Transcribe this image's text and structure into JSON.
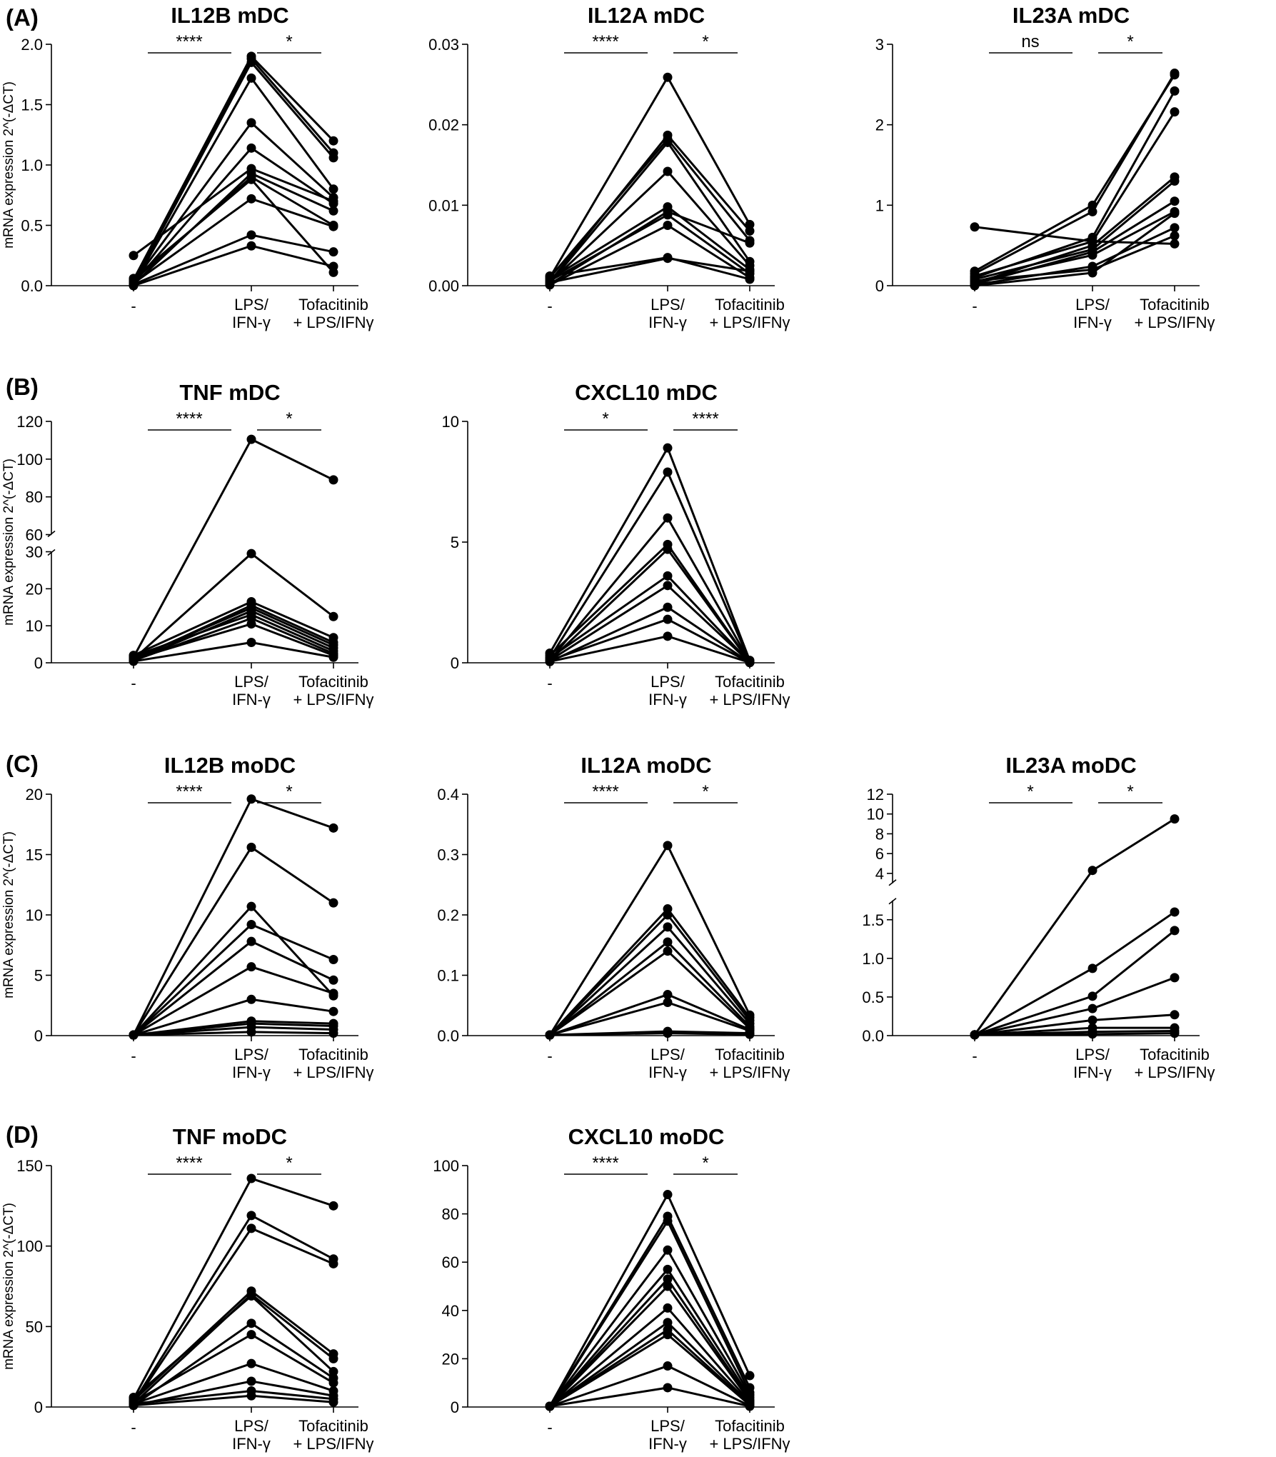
{
  "panel_labels": [
    "(A)",
    "(B)",
    "(C)",
    "(D)"
  ],
  "y_axis_label": "mRNA expression 2^(-ΔCT)",
  "x_categories": [
    "-",
    "LPS/ IFN-γ",
    "Tofacitinib + LPS/IFNγ"
  ],
  "chart_data": [
    {
      "type": "line",
      "title": "IL12B mDC",
      "row": 0,
      "col": 0,
      "categories": [
        "-",
        "LPS/IFN-γ",
        "Tofacitinib + LPS/IFNγ"
      ],
      "ylim": [
        0,
        2
      ],
      "yticks": [
        0.0,
        0.5,
        1.0,
        1.5,
        2.0
      ],
      "ytick_labels": [
        "0.0",
        "0.5",
        "1.0",
        "1.5",
        "2.0"
      ],
      "significance": [
        "****",
        "*"
      ],
      "series": [
        {
          "values": [
            0.25,
            0.97,
            0.7
          ]
        },
        {
          "values": [
            0.05,
            1.9,
            1.2
          ]
        },
        {
          "values": [
            0.03,
            1.88,
            1.1
          ]
        },
        {
          "values": [
            0.02,
            1.85,
            1.06
          ]
        },
        {
          "values": [
            0.01,
            1.72,
            0.8
          ]
        },
        {
          "values": [
            0.03,
            1.35,
            0.73
          ]
        },
        {
          "values": [
            0.02,
            1.14,
            0.68
          ]
        },
        {
          "values": [
            0.01,
            0.93,
            0.62
          ]
        },
        {
          "values": [
            0.04,
            0.9,
            0.5
          ]
        },
        {
          "values": [
            0.02,
            0.72,
            0.49
          ]
        },
        {
          "values": [
            0.01,
            0.42,
            0.28
          ]
        },
        {
          "values": [
            0.0,
            0.33,
            0.16
          ]
        },
        {
          "values": [
            0.06,
            0.88,
            0.11
          ]
        }
      ]
    },
    {
      "type": "line",
      "title": "IL12A mDC",
      "row": 0,
      "col": 1,
      "categories": [
        "-",
        "LPS/IFN-γ",
        "Tofacitinib + LPS/IFNγ"
      ],
      "ylim": [
        0,
        0.03
      ],
      "yticks": [
        0,
        0.01,
        0.02,
        0.03
      ],
      "ytick_labels": [
        "0.00",
        "0.01",
        "0.02",
        "0.03"
      ],
      "significance": [
        "****",
        "*"
      ],
      "series": [
        {
          "values": [
            0.001,
            0.0259,
            0.0076
          ]
        },
        {
          "values": [
            0.0005,
            0.0187,
            0.0068
          ]
        },
        {
          "values": [
            0.001,
            0.0182,
            0.0056
          ]
        },
        {
          "values": [
            0.0003,
            0.0178,
            0.003
          ]
        },
        {
          "values": [
            0.0004,
            0.0142,
            0.0025
          ]
        },
        {
          "values": [
            0.0008,
            0.0098,
            0.002
          ]
        },
        {
          "values": [
            0.0002,
            0.0092,
            0.0053
          ]
        },
        {
          "values": [
            0.0006,
            0.0088,
            0.0015
          ]
        },
        {
          "values": [
            0.0001,
            0.0075,
            0.001
          ]
        },
        {
          "values": [
            0.0012,
            0.0035,
            0.0008
          ]
        },
        {
          "values": [
            0.0004,
            0.0034,
            0.0018
          ]
        }
      ]
    },
    {
      "type": "line",
      "title": "IL23A mDC",
      "row": 0,
      "col": 2,
      "categories": [
        "-",
        "LPS/IFN-γ",
        "Tofacitinib + LPS/IFNγ"
      ],
      "ylim": [
        0,
        3
      ],
      "yticks": [
        0,
        1,
        2,
        3
      ],
      "ytick_labels": [
        "0",
        "1",
        "2",
        "3"
      ],
      "significance": [
        "ns",
        "*"
      ],
      "series": [
        {
          "values": [
            0.73,
            0.55,
            0.52
          ]
        },
        {
          "values": [
            0.18,
            1.0,
            2.62
          ]
        },
        {
          "values": [
            0.15,
            0.92,
            2.64
          ]
        },
        {
          "values": [
            0.1,
            0.6,
            2.42
          ]
        },
        {
          "values": [
            0.12,
            0.55,
            2.16
          ]
        },
        {
          "values": [
            0.03,
            0.5,
            1.35
          ]
        },
        {
          "values": [
            0.08,
            0.45,
            1.3
          ]
        },
        {
          "values": [
            0.02,
            0.42,
            1.05
          ]
        },
        {
          "values": [
            0.05,
            0.38,
            0.92
          ]
        },
        {
          "values": [
            0.01,
            0.24,
            0.72
          ]
        },
        {
          "values": [
            0.06,
            0.2,
            0.62
          ]
        },
        {
          "values": [
            0.0,
            0.16,
            0.9
          ]
        }
      ]
    },
    {
      "type": "line",
      "title": "TNF mDC",
      "row": 1,
      "col": 0,
      "categories": [
        "-",
        "LPS/IFN-γ",
        "Tofacitinib + LPS/IFNγ"
      ],
      "axis_break": {
        "lower_max": 30,
        "upper_min": 60,
        "upper_max": 120,
        "split": 0.46
      },
      "yticks": [
        0,
        10,
        20,
        30,
        60,
        80,
        100,
        120
      ],
      "ytick_labels": [
        "0",
        "10",
        "20",
        "30",
        "60",
        "80",
        "100",
        "120"
      ],
      "significance": [
        "****",
        "*"
      ],
      "series": [
        {
          "values": [
            1.5,
            110.5,
            89
          ]
        },
        {
          "values": [
            1.0,
            29.5,
            12.5
          ]
        },
        {
          "values": [
            2.0,
            16.5,
            6.8
          ]
        },
        {
          "values": [
            0.8,
            15.5,
            5.5
          ]
        },
        {
          "values": [
            1.2,
            14.8,
            4.8
          ]
        },
        {
          "values": [
            0.5,
            14,
            4.0
          ]
        },
        {
          "values": [
            1.8,
            13,
            3.2
          ]
        },
        {
          "values": [
            0.6,
            12,
            2.5
          ]
        },
        {
          "values": [
            1.0,
            10.5,
            2.0
          ]
        },
        {
          "values": [
            0.4,
            5.5,
            1.5
          ]
        }
      ]
    },
    {
      "type": "line",
      "title": "CXCL10 mDC",
      "row": 1,
      "col": 1,
      "categories": [
        "-",
        "LPS/IFN-γ",
        "Tofacitinib + LPS/IFNγ"
      ],
      "ylim": [
        0,
        10
      ],
      "yticks": [
        0,
        5,
        10
      ],
      "ytick_labels": [
        "0",
        "5",
        "10"
      ],
      "significance": [
        "*",
        "****"
      ],
      "series": [
        {
          "values": [
            0.4,
            8.9,
            0.1
          ]
        },
        {
          "values": [
            0.2,
            7.9,
            0.05
          ]
        },
        {
          "values": [
            0.1,
            6.0,
            0.05
          ]
        },
        {
          "values": [
            0.3,
            4.9,
            0.03
          ]
        },
        {
          "values": [
            0.1,
            4.7,
            0.02
          ]
        },
        {
          "values": [
            0.2,
            3.6,
            0.02
          ]
        },
        {
          "values": [
            0.1,
            3.2,
            0.02
          ]
        },
        {
          "values": [
            0.05,
            2.3,
            0.01
          ]
        },
        {
          "values": [
            0.1,
            1.8,
            0.01
          ]
        },
        {
          "values": [
            0.05,
            1.1,
            0.01
          ]
        }
      ]
    },
    {
      "type": "line",
      "title": "IL12B moDC",
      "row": 2,
      "col": 0,
      "categories": [
        "-",
        "LPS/IFN-γ",
        "Tofacitinib + LPS/IFNγ"
      ],
      "ylim": [
        0,
        20
      ],
      "yticks": [
        0,
        5,
        10,
        15,
        20
      ],
      "ytick_labels": [
        "0",
        "5",
        "10",
        "15",
        "20"
      ],
      "significance": [
        "****",
        "*"
      ],
      "series": [
        {
          "values": [
            0.05,
            19.6,
            17.2
          ]
        },
        {
          "values": [
            0.05,
            15.6,
            11.0
          ]
        },
        {
          "values": [
            0.05,
            10.7,
            3.3
          ]
        },
        {
          "values": [
            0.05,
            9.2,
            6.3
          ]
        },
        {
          "values": [
            0.05,
            7.8,
            4.6
          ]
        },
        {
          "values": [
            0.05,
            5.7,
            3.5
          ]
        },
        {
          "values": [
            0.05,
            3.0,
            2.0
          ]
        },
        {
          "values": [
            0.05,
            1.2,
            1.0
          ]
        },
        {
          "values": [
            0.05,
            1.0,
            0.8
          ]
        },
        {
          "values": [
            0.05,
            0.7,
            0.5
          ]
        },
        {
          "values": [
            0.05,
            0.3,
            0.2
          ]
        }
      ]
    },
    {
      "type": "line",
      "title": "IL12A moDC",
      "row": 2,
      "col": 1,
      "categories": [
        "-",
        "LPS/IFN-γ",
        "Tofacitinib + LPS/IFNγ"
      ],
      "ylim": [
        0,
        0.4
      ],
      "yticks": [
        0,
        0.1,
        0.2,
        0.3,
        0.4
      ],
      "ytick_labels": [
        "0.0",
        "0.1",
        "0.2",
        "0.3",
        "0.4"
      ],
      "significance": [
        "****",
        "*"
      ],
      "series": [
        {
          "values": [
            0.001,
            0.315,
            0.034
          ]
        },
        {
          "values": [
            0.001,
            0.21,
            0.03
          ]
        },
        {
          "values": [
            0.001,
            0.2,
            0.025
          ]
        },
        {
          "values": [
            0.001,
            0.18,
            0.02
          ]
        },
        {
          "values": [
            0.001,
            0.155,
            0.015
          ]
        },
        {
          "values": [
            0.001,
            0.14,
            0.012
          ]
        },
        {
          "values": [
            0.001,
            0.068,
            0.01
          ]
        },
        {
          "values": [
            0.001,
            0.055,
            0.008
          ]
        },
        {
          "values": [
            0.001,
            0.007,
            0.004
          ]
        },
        {
          "values": [
            0.001,
            0.004,
            0.002
          ]
        }
      ]
    },
    {
      "type": "line",
      "title": "IL23A moDC",
      "row": 2,
      "col": 2,
      "categories": [
        "-",
        "LPS/IFN-γ",
        "Tofacitinib + LPS/IFNγ"
      ],
      "axis_break": {
        "lower_max": 1.75,
        "upper_min": 3,
        "upper_max": 12,
        "split": 0.56
      },
      "yticks": [
        0,
        0.5,
        1.0,
        1.5,
        4,
        6,
        8,
        10,
        12
      ],
      "ytick_labels": [
        "0.0",
        "0.5",
        "1.0",
        "1.5",
        "4",
        "6",
        "8",
        "10",
        "12"
      ],
      "significance": [
        "*",
        "*"
      ],
      "series": [
        {
          "values": [
            0.01,
            4.3,
            9.5
          ]
        },
        {
          "values": [
            0.01,
            0.87,
            1.6
          ]
        },
        {
          "values": [
            0.01,
            0.51,
            1.36
          ]
        },
        {
          "values": [
            0.01,
            0.35,
            0.75
          ]
        },
        {
          "values": [
            0.01,
            0.2,
            0.27
          ]
        },
        {
          "values": [
            0.01,
            0.1,
            0.1
          ]
        },
        {
          "values": [
            0.01,
            0.05,
            0.06
          ]
        },
        {
          "values": [
            0.01,
            0.02,
            0.03
          ]
        }
      ]
    },
    {
      "type": "line",
      "title": "TNF moDC",
      "row": 3,
      "col": 0,
      "categories": [
        "-",
        "LPS/IFN-γ",
        "Tofacitinib + LPS/IFNγ"
      ],
      "ylim": [
        0,
        150
      ],
      "yticks": [
        0,
        50,
        100,
        150
      ],
      "ytick_labels": [
        "0",
        "50",
        "100",
        "150"
      ],
      "significance": [
        "****",
        "*"
      ],
      "series": [
        {
          "values": [
            5,
            142,
            125
          ]
        },
        {
          "values": [
            3,
            119,
            92
          ]
        },
        {
          "values": [
            2,
            111,
            89
          ]
        },
        {
          "values": [
            4,
            72,
            33
          ]
        },
        {
          "values": [
            2,
            70,
            30
          ]
        },
        {
          "values": [
            6,
            69,
            22
          ]
        },
        {
          "values": [
            1,
            52,
            18
          ]
        },
        {
          "values": [
            3,
            45,
            15
          ]
        },
        {
          "values": [
            2,
            27,
            10
          ]
        },
        {
          "values": [
            1,
            16,
            7
          ]
        },
        {
          "values": [
            2,
            10,
            5
          ]
        },
        {
          "values": [
            1,
            7,
            3
          ]
        }
      ]
    },
    {
      "type": "line",
      "title": "CXCL10 moDC",
      "row": 3,
      "col": 1,
      "categories": [
        "-",
        "LPS/IFN-γ",
        "Tofacitinib + LPS/IFNγ"
      ],
      "ylim": [
        0,
        100
      ],
      "yticks": [
        0,
        20,
        40,
        60,
        80,
        100
      ],
      "ytick_labels": [
        "0",
        "20",
        "40",
        "60",
        "80",
        "100"
      ],
      "significance": [
        "****",
        "*"
      ],
      "series": [
        {
          "values": [
            0.3,
            88,
            13
          ]
        },
        {
          "values": [
            0.3,
            79,
            8
          ]
        },
        {
          "values": [
            0.3,
            77,
            6
          ]
        },
        {
          "values": [
            0.3,
            65,
            5
          ]
        },
        {
          "values": [
            0.3,
            57,
            4
          ]
        },
        {
          "values": [
            0.3,
            53,
            3
          ]
        },
        {
          "values": [
            0.3,
            50,
            2.5
          ]
        },
        {
          "values": [
            0.3,
            41,
            2
          ]
        },
        {
          "values": [
            0.3,
            35,
            1.5
          ]
        },
        {
          "values": [
            0.3,
            32,
            1
          ]
        },
        {
          "values": [
            0.3,
            30,
            0.8
          ]
        },
        {
          "values": [
            0.3,
            17,
            0.5
          ]
        },
        {
          "values": [
            0.3,
            8,
            0.3
          ]
        }
      ]
    }
  ]
}
